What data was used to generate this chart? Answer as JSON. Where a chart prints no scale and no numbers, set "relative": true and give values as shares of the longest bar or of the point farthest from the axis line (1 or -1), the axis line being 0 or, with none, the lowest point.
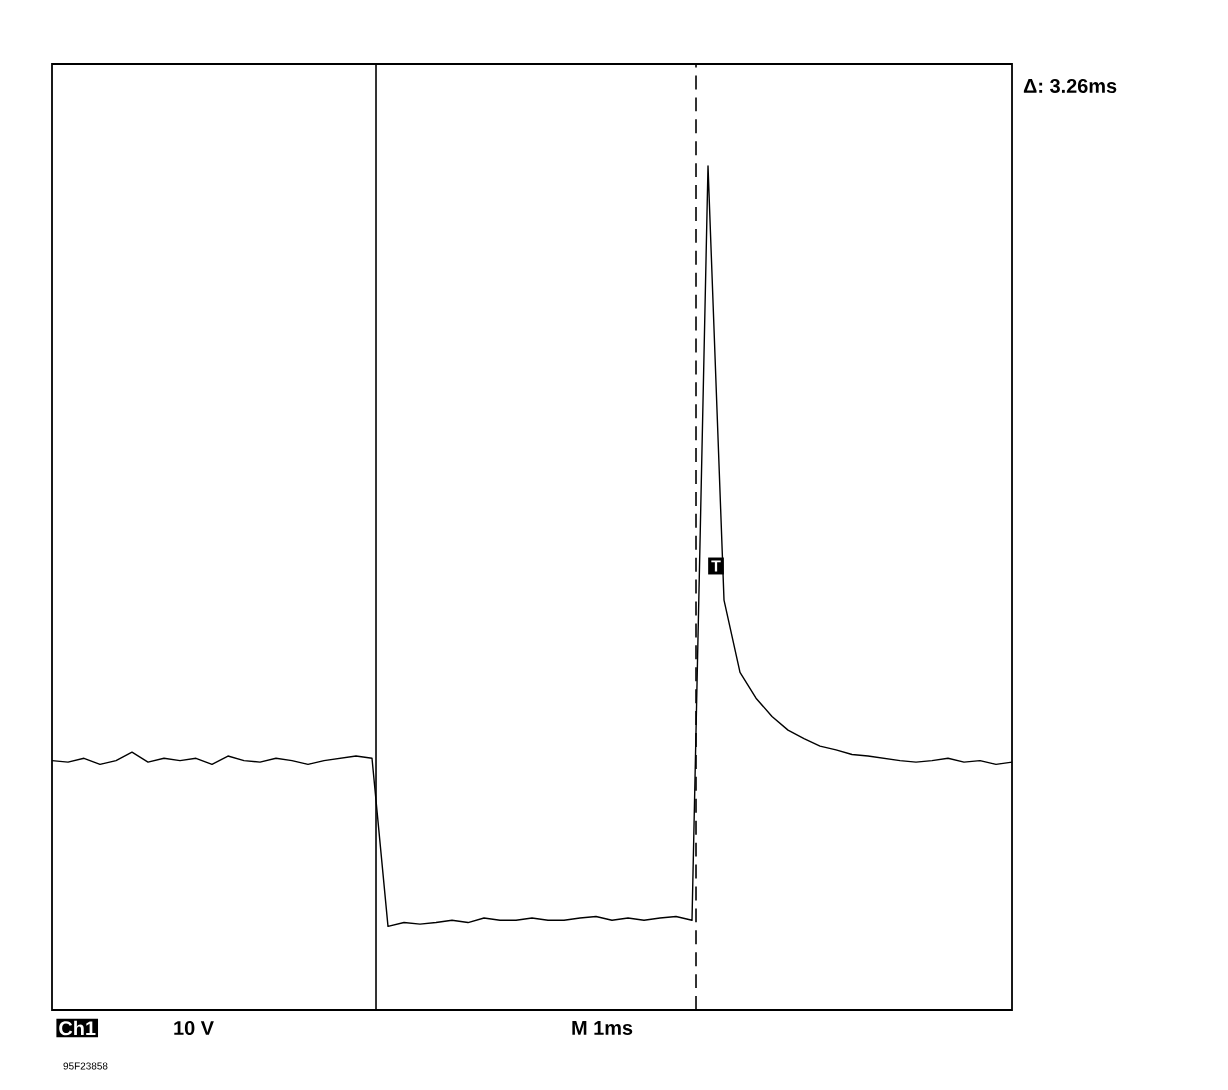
{
  "chart_data": {
    "type": "line",
    "relative": true,
    "categories": [
      null,
      null,
      null,
      null,
      null,
      null,
      null,
      null,
      null,
      null,
      null,
      null,
      null,
      null,
      null,
      null,
      null,
      null,
      null,
      null,
      null,
      null,
      null,
      null,
      null,
      null,
      null,
      null,
      null,
      null,
      null,
      null,
      null,
      null,
      null,
      null,
      null,
      null,
      null,
      null,
      null,
      null,
      null,
      null,
      null,
      null,
      null,
      null,
      null,
      null,
      null,
      null,
      null,
      null,
      null,
      null,
      null,
      null,
      null,
      null,
      null
    ],
    "values": [
      0.218,
      0.216,
      0.221,
      0.213,
      0.218,
      0.229,
      0.216,
      0.221,
      0.218,
      0.221,
      0.213,
      0.224,
      0.218,
      0.216,
      0.221,
      0.218,
      0.213,
      0.218,
      0.221,
      0.224,
      0.221,
      0,
      0.005,
      0.003,
      0.005,
      0.008,
      0.005,
      0.011,
      0.008,
      0.008,
      0.011,
      0.008,
      0.008,
      0.011,
      0.013,
      0.008,
      0.011,
      0.008,
      0.011,
      0.013,
      0.008,
      1.0,
      0.429,
      0.334,
      0.3,
      0.276,
      0.258,
      0.247,
      0.237,
      0.232,
      0.226,
      0.224,
      0.221,
      0.218,
      0.216,
      0.218,
      0.221,
      0.216,
      0.218,
      0.213,
      0.216
    ],
    "color": "#000000",
    "annotations": [
      "Δ: 3.26ms",
      "Ch1",
      "10 V",
      "M   1ms",
      "95F23858",
      "T"
    ]
  }
}
